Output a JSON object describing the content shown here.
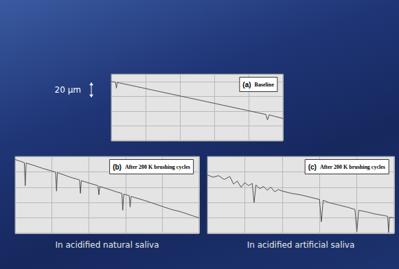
{
  "scale_bar": {
    "label": "20 µm",
    "length": 20
  },
  "chart_data": [
    {
      "type": "line",
      "title": "(a) Baseline",
      "color": "#4d4d4d",
      "grid": true,
      "tick_labels": false,
      "xlim": [
        0,
        100
      ],
      "xticks": [
        0,
        20,
        40,
        60,
        80,
        100
      ],
      "ylim": [
        -80,
        10
      ],
      "yticks": [
        -80,
        -60,
        -40,
        -20,
        0
      ],
      "x": [
        0,
        2.5,
        3,
        3.5,
        5,
        10,
        15,
        20,
        25,
        30,
        35,
        40,
        45,
        50,
        55,
        60,
        65,
        70,
        75,
        80,
        85,
        90,
        91,
        92,
        95,
        100
      ],
      "values": [
        0,
        -1,
        -9,
        -1.5,
        -2,
        -4.5,
        -7,
        -9.5,
        -12,
        -14.5,
        -17,
        -19.5,
        -22,
        -24.5,
        -27,
        -29.5,
        -32,
        -34.5,
        -37,
        -39.5,
        -42,
        -44.5,
        -52,
        -45,
        -47,
        -50
      ]
    },
    {
      "type": "line",
      "title": "(b) After 200 K brushing cycles",
      "caption": "In acidified natural saliva",
      "color": "#4d4d4d",
      "grid": true,
      "tick_labels": false,
      "xlim": [
        0,
        100
      ],
      "xticks": [
        0,
        20,
        40,
        60,
        80,
        100
      ],
      "ylim": [
        -100,
        0
      ],
      "yticks": [
        -100,
        -80,
        -60,
        -40,
        -20,
        0
      ],
      "x": [
        0,
        5,
        5.5,
        6,
        10,
        15,
        20,
        22,
        22.5,
        23,
        30,
        35,
        35.5,
        36,
        40,
        45,
        45.5,
        46,
        50,
        55,
        58,
        58.5,
        59,
        62,
        62.5,
        63,
        70,
        75,
        80,
        85,
        90,
        95,
        100
      ],
      "values": [
        -4,
        -8,
        -38,
        -8.5,
        -11.5,
        -15.5,
        -19,
        -20.5,
        -45,
        -21,
        -27,
        -30.5,
        -48,
        -31.5,
        -34.5,
        -38,
        -50,
        -39,
        -42,
        -46,
        -48,
        -70,
        -49,
        -51,
        -66,
        -52,
        -57,
        -61,
        -65,
        -69,
        -72,
        -76,
        -80
      ]
    },
    {
      "type": "line",
      "title": "(c) After 200 K brushing cycles",
      "caption": "In acidified artificial saliva",
      "color": "#4d4d4d",
      "grid": true,
      "tick_labels": false,
      "xlim": [
        0,
        100
      ],
      "xticks": [
        0,
        20,
        40,
        60,
        80,
        100
      ],
      "ylim": [
        -100,
        0
      ],
      "yticks": [
        -100,
        -80,
        -60,
        -40,
        -20,
        0
      ],
      "x": [
        0,
        3,
        6,
        9,
        12,
        14,
        16,
        18,
        20,
        22,
        24,
        25,
        26,
        28,
        30,
        32,
        34,
        36,
        38,
        40,
        45,
        50,
        55,
        60,
        61,
        62,
        65,
        70,
        75,
        79,
        80,
        81,
        85,
        90,
        95,
        96.5,
        97,
        97.5,
        100
      ],
      "values": [
        -24,
        -27,
        -25,
        -30,
        -26,
        -36,
        -32,
        -40,
        -34,
        -38,
        -35,
        -60,
        -37,
        -42,
        -39,
        -44,
        -40,
        -46,
        -43,
        -45,
        -48,
        -50,
        -53,
        -56,
        -85,
        -57,
        -60,
        -63,
        -66,
        -69,
        -98,
        -70,
        -72,
        -75,
        -77,
        -78,
        -99,
        -79,
        -80
      ]
    }
  ]
}
